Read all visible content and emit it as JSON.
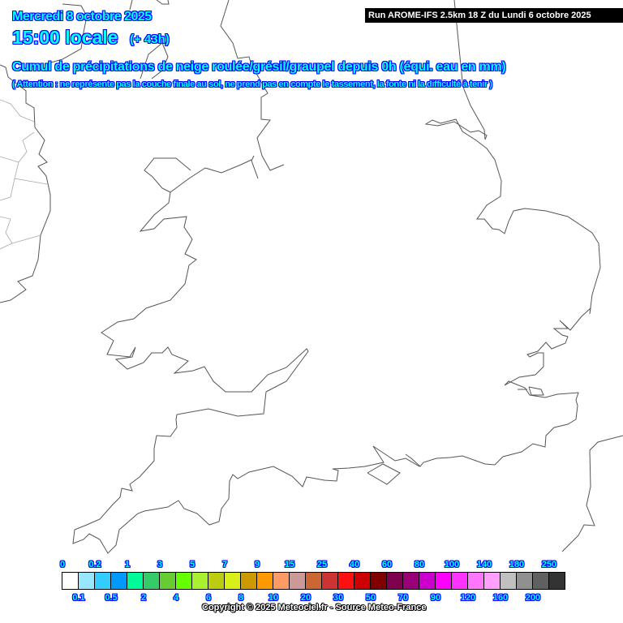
{
  "header": {
    "date": "Mercredi 8 octobre 2025",
    "time": "15:00 locale",
    "lead": "(+ 43h)",
    "title": "Cumul de précipitations de neige roulée/grésil/graupel depuis 0h (équi. eau en mm)",
    "note": "( Attention : ne représente pas la couche finale au sol, ne prend pas en compte le tassement, la fonte ni la difficulté à tenir )",
    "run": "Run AROME-IFS 2.5km 18 Z du Lundi 6 octobre 2025"
  },
  "legend": {
    "colors": [
      "#ffffff",
      "#99e6ff",
      "#33ccff",
      "#0099ff",
      "#00fa9a",
      "#33cc66",
      "#66cc33",
      "#66ff00",
      "#a8f030",
      "#bccc10",
      "#d8f018",
      "#cc9900",
      "#ff9900",
      "#ff9966",
      "#cc9999",
      "#cc6633",
      "#cc3333",
      "#ff1010",
      "#cc0000",
      "#800000",
      "#800050",
      "#990077",
      "#cc00cc",
      "#ff00ff",
      "#ff33ff",
      "#ff77ff",
      "#ffa0ff",
      "#c0c0c0",
      "#909090",
      "#606060",
      "#333333"
    ],
    "top_labels": [
      "0",
      "0.2",
      "1",
      "3",
      "5",
      "7",
      "9",
      "15",
      "25",
      "40",
      "60",
      "80",
      "100",
      "140",
      "180",
      "250"
    ],
    "bottom_labels": [
      "0.1",
      "0.5",
      "2",
      "4",
      "6",
      "8",
      "10",
      "20",
      "30",
      "50",
      "70",
      "90",
      "120",
      "160",
      "200"
    ]
  },
  "copyright": "Copyright © 2025 Meteociel.fr - Source Meteo-France"
}
